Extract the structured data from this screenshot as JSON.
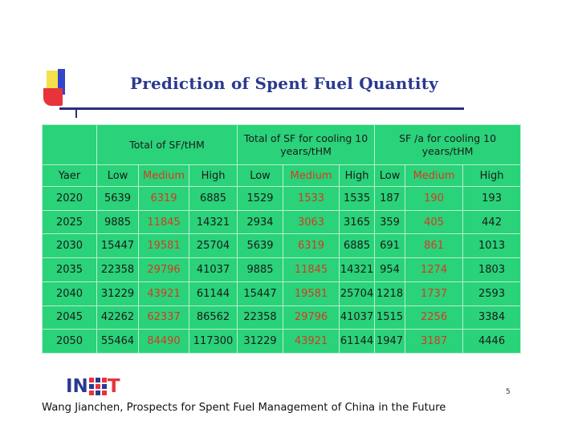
{
  "title": "Prediction of Spent Fuel Quantity",
  "table": {
    "group_headers": [
      "Total of SF/tHM",
      "Total of SF for cooling 10 years/tHM",
      "SF /a for cooling 10 years/tHM"
    ],
    "column_headers": [
      "Yaer",
      "Low",
      "Medium",
      "High",
      "Low",
      "Medium",
      "High",
      "Low",
      "Medium",
      "High"
    ],
    "rows": [
      [
        "2020",
        "5639",
        "6319",
        "6885",
        "1529",
        "1533",
        "1535",
        "187",
        "190",
        "193"
      ],
      [
        "2025",
        "9885",
        "11845",
        "14321",
        "2934",
        "3063",
        "3165",
        "359",
        "405",
        "442"
      ],
      [
        "2030",
        "15447",
        "19581",
        "25704",
        "5639",
        "6319",
        "6885",
        "691",
        "861",
        "1013"
      ],
      [
        "2035",
        "22358",
        "29796",
        "41037",
        "9885",
        "11845",
        "14321",
        "954",
        "1274",
        "1803"
      ],
      [
        "2040",
        "31229",
        "43921",
        "61144",
        "15447",
        "19581",
        "25704",
        "1218",
        "1737",
        "2593"
      ],
      [
        "2045",
        "42262",
        "62337",
        "86562",
        "22358",
        "29796",
        "41037",
        "1515",
        "2256",
        "3384"
      ],
      [
        "2050",
        "55464",
        "84490",
        "117300",
        "31229",
        "43921",
        "61144",
        "1947",
        "3187",
        "4446"
      ]
    ]
  },
  "logo": {
    "text_left": "IN",
    "text_right": "T",
    "colors": {
      "primary": "#2a3a8f",
      "accent": "#e8323c"
    }
  },
  "page_number": "5",
  "footer": "Wang Jianchen, Prospects for Spent Fuel Management of China in the Future",
  "colors": {
    "table_background": "#2ad27a",
    "medium_text": "#d63a20",
    "title": "#2a3a8f"
  }
}
